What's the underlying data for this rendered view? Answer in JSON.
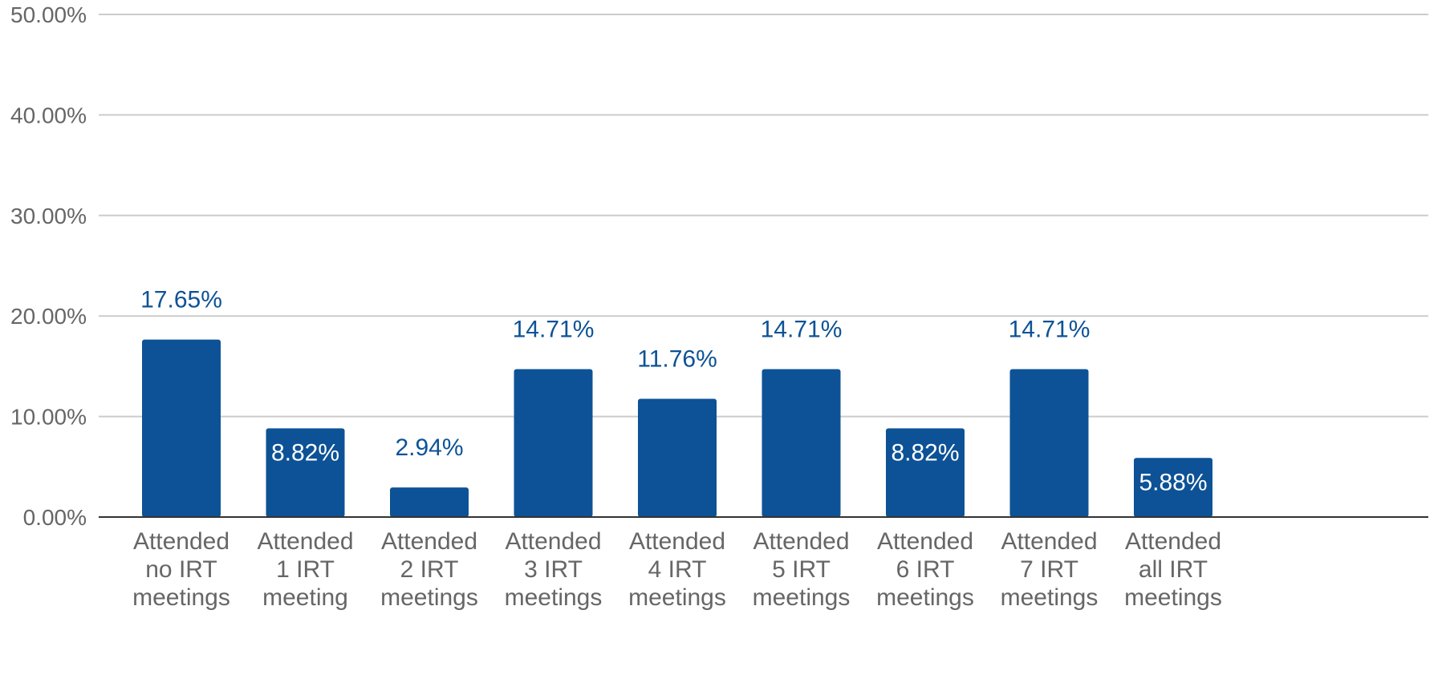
{
  "chart_data": {
    "type": "bar",
    "categories": [
      [
        "Attended",
        "no IRT",
        "meetings"
      ],
      [
        "Attended",
        "1 IRT",
        "meeting"
      ],
      [
        "Attended",
        "2 IRT",
        "meetings"
      ],
      [
        "Attended",
        "3 IRT",
        "meetings"
      ],
      [
        "Attended",
        "4 IRT",
        "meetings"
      ],
      [
        "Attended",
        "5 IRT",
        "meetings"
      ],
      [
        "Attended",
        "6 IRT",
        "meetings"
      ],
      [
        "Attended",
        "7 IRT",
        "meetings"
      ],
      [
        "Attended",
        "all IRT",
        "meetings"
      ]
    ],
    "values": [
      17.65,
      8.82,
      2.94,
      14.71,
      11.76,
      14.71,
      8.82,
      14.71,
      5.88
    ],
    "data_labels": [
      "17.65%",
      "8.82%",
      "2.94%",
      "14.71%",
      "11.76%",
      "14.71%",
      "8.82%",
      "14.71%",
      "5.88%"
    ],
    "y_ticks": [
      0,
      10,
      20,
      30,
      40,
      50
    ],
    "y_tick_labels": [
      "0.00%",
      "10.00%",
      "20.00%",
      "30.00%",
      "40.00%",
      "50.00%"
    ],
    "ylim": [
      0,
      50
    ],
    "title": "",
    "xlabel": "",
    "ylabel": "",
    "grid": true,
    "legend": "none",
    "colors": {
      "bar": "#0D5296",
      "label_outside": "#0D5296",
      "label_inside": "#FFFFFF",
      "grid": "#CCCCCC",
      "axis": "#333333",
      "tick_text": "#666666"
    }
  }
}
